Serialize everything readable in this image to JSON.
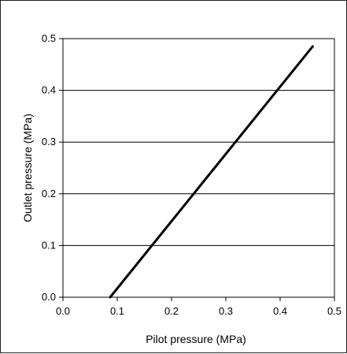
{
  "chart_data": {
    "type": "line",
    "title": "",
    "xlabel": "Pilot pressure (MPa)",
    "ylabel": "Outlet pressure (MPa)",
    "xlim": [
      0.0,
      0.5
    ],
    "ylim": [
      0.0,
      0.5
    ],
    "x_ticks": [
      "0.0",
      "0.1",
      "0.2",
      "0.3",
      "0.4",
      "0.5"
    ],
    "y_ticks": [
      "0.0",
      "0.1",
      "0.2",
      "0.3",
      "0.4",
      "0.5"
    ],
    "grid": "horizontal",
    "legend": "none",
    "series": [
      {
        "line_color": "#000000",
        "x": [
          0.087,
          0.46
        ],
        "y": [
          0.0,
          0.485
        ]
      }
    ]
  }
}
